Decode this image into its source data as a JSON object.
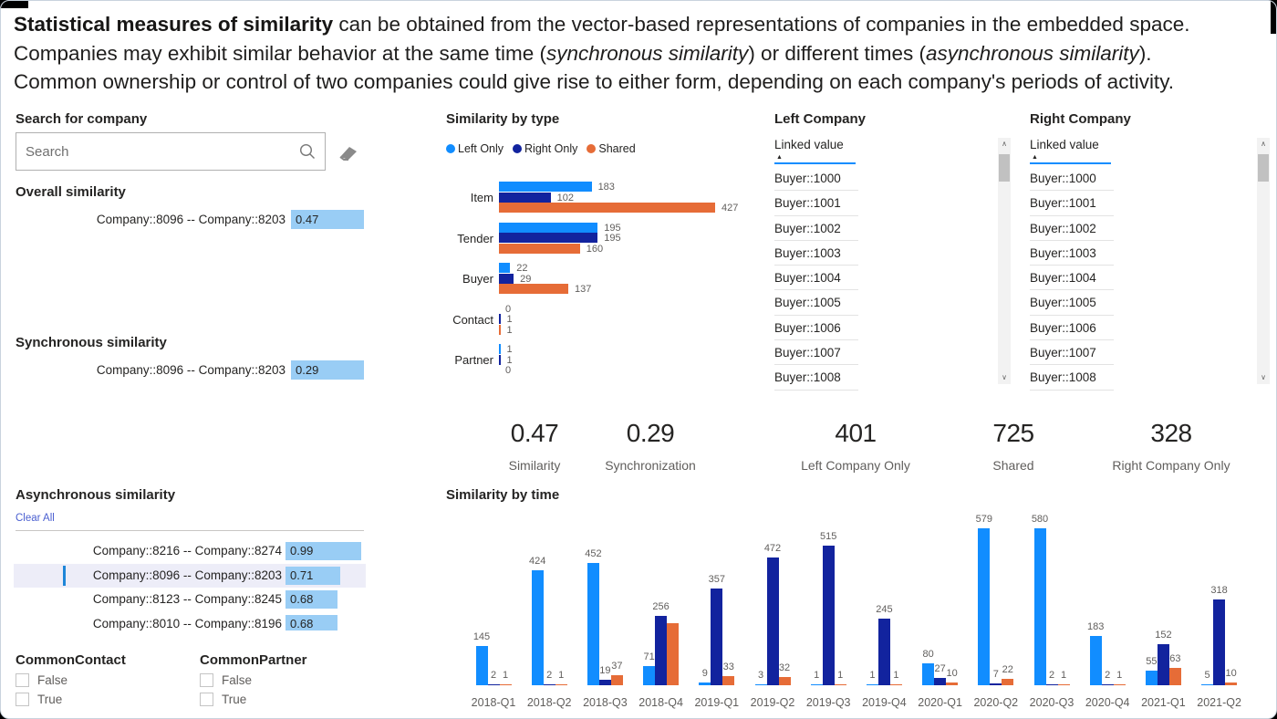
{
  "header": {
    "lines": [
      [
        {
          "t": "Statistical measures of similarity",
          "b": 1
        },
        {
          "t": " can be obtained from the vector-based representations of companies in the embedded space."
        }
      ],
      [
        {
          "t": "Companies may exhibit similar behavior at the same time ("
        },
        {
          "t": "synchronous similarity",
          "i": 1
        },
        {
          "t": ") or different times ("
        },
        {
          "t": "asynchronous similarity",
          "i": 1
        },
        {
          "t": ")."
        }
      ],
      [
        {
          "t": "Common ownership or control of two companies could give rise to either form, depending on each company's periods of activity."
        }
      ]
    ]
  },
  "search": {
    "title": "Search for company",
    "placeholder": "Search"
  },
  "overall": {
    "title": "Overall similarity",
    "row": {
      "label": "Company::8096 -- Company::8203",
      "value": "0.47"
    }
  },
  "synchronous": {
    "title": "Synchronous similarity",
    "row": {
      "label": "Company::8096 -- Company::8203",
      "value": "0.29"
    }
  },
  "asynchronous": {
    "title": "Asynchronous similarity",
    "clear_all": "Clear All",
    "rows": [
      {
        "label": "Company::8216 -- Company::8274",
        "value": "0.99",
        "selected": false
      },
      {
        "label": "Company::8096 -- Company::8203",
        "value": "0.71",
        "selected": true
      },
      {
        "label": "Company::8123 -- Company::8245",
        "value": "0.68",
        "selected": false
      },
      {
        "label": "Company::8010 -- Company::8196",
        "value": "0.68",
        "selected": false
      }
    ]
  },
  "common_contact": {
    "title": "CommonContact",
    "options": [
      "False",
      "True"
    ]
  },
  "common_partner": {
    "title": "CommonPartner",
    "options": [
      "False",
      "True"
    ]
  },
  "left_company": {
    "title": "Left Company",
    "column": "Linked value",
    "rows": [
      "Buyer::1000",
      "Buyer::1001",
      "Buyer::1002",
      "Buyer::1003",
      "Buyer::1004",
      "Buyer::1005",
      "Buyer::1006",
      "Buyer::1007",
      "Buyer::1008"
    ]
  },
  "right_company": {
    "title": "Right Company",
    "column": "Linked value",
    "rows": [
      "Buyer::1000",
      "Buyer::1001",
      "Buyer::1002",
      "Buyer::1003",
      "Buyer::1004",
      "Buyer::1005",
      "Buyer::1006",
      "Buyer::1007",
      "Buyer::1008"
    ]
  },
  "kpis": [
    {
      "value": "0.47",
      "label": "Similarity"
    },
    {
      "value": "0.29",
      "label": "Synchronization"
    },
    {
      "value": "401",
      "label": "Left Company Only"
    },
    {
      "value": "725",
      "label": "Shared"
    },
    {
      "value": "328",
      "label": "Right Company Only"
    }
  ],
  "colors": {
    "left_only": "#118DFF",
    "right_only": "#12239E",
    "shared": "#E66C37",
    "slicer_bar": "#99CDF5",
    "selected_row_bg": "#EDEDF8",
    "header_accent": "#118DFF"
  },
  "chart_data": [
    {
      "id": "similarity_by_type",
      "type": "bar",
      "orientation": "horizontal",
      "title": "Similarity by type",
      "legend": [
        "Left Only",
        "Right Only",
        "Shared"
      ],
      "legend_position": "top",
      "categories": [
        "Item",
        "Tender",
        "Buyer",
        "Contact",
        "Partner"
      ],
      "series": [
        {
          "name": "Left Only",
          "values": [
            183,
            195,
            22,
            0,
            1
          ]
        },
        {
          "name": "Right Only",
          "values": [
            102,
            195,
            29,
            1,
            1
          ]
        },
        {
          "name": "Shared",
          "values": [
            427,
            160,
            137,
            1,
            0
          ]
        }
      ],
      "xlim": [
        0,
        450
      ],
      "grid": false
    },
    {
      "id": "similarity_by_time",
      "type": "bar",
      "orientation": "vertical",
      "title": "Similarity by time",
      "categories": [
        "2018-Q1",
        "2018-Q2",
        "2018-Q3",
        "2018-Q4",
        "2019-Q1",
        "2019-Q2",
        "2019-Q3",
        "2019-Q4",
        "2020-Q1",
        "2020-Q2",
        "2020-Q3",
        "2020-Q4",
        "2021-Q1",
        "2021-Q2"
      ],
      "series": [
        {
          "name": "Left Only",
          "values": [
            145,
            424,
            452,
            71,
            9,
            3,
            1,
            1,
            80,
            579,
            580,
            183,
            55,
            5
          ]
        },
        {
          "name": "Right Only",
          "values": [
            2,
            2,
            19,
            256,
            357,
            472,
            515,
            245,
            27,
            7,
            2,
            2,
            152,
            318
          ]
        },
        {
          "name": "Shared",
          "values": [
            1,
            1,
            37,
            230,
            33,
            32,
            1,
            1,
            10,
            22,
            1,
            1,
            63,
            10
          ]
        }
      ],
      "unlabeled": [
        {
          "category": "2018-Q4",
          "series": "Shared"
        }
      ],
      "ylim": [
        0,
        620
      ],
      "grid": false
    }
  ]
}
